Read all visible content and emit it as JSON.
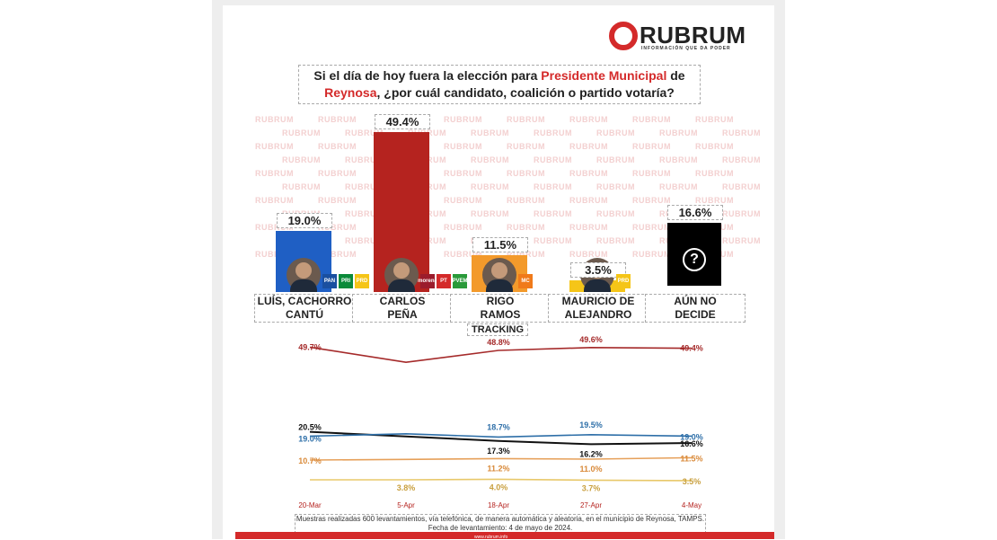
{
  "header": {
    "logo_text": "RUBRUM",
    "logo_tagline": "INFORMACIÓN QUE DA PODER"
  },
  "question": {
    "part1": "Si el día de hoy fuera la elección para ",
    "highlight1": "Presidente Municipal",
    "part2": " de",
    "highlight2": "Reynosa",
    "part3": ", ¿por cuál candidato, coalición o partido votaría?"
  },
  "watermark_text": "RUBRUM",
  "candidates": [
    {
      "name_line1": "LUÍS, CACHORRO",
      "name_line2": "CANTÚ",
      "parties": [
        "PAN",
        "PRI",
        "PRD"
      ]
    },
    {
      "name_line1": "CARLOS",
      "name_line2": "PEÑA",
      "parties": [
        "morena",
        "PT",
        "PVEM"
      ]
    },
    {
      "name_line1": "RIGO",
      "name_line2": "RAMOS",
      "parties": [
        "MC"
      ]
    },
    {
      "name_line1": "MAURICIO DE",
      "name_line2": "ALEJANDRO",
      "parties": [
        "PRD"
      ]
    },
    {
      "name_line1": "AÚN NO",
      "name_line2": "DECIDE",
      "parties": []
    }
  ],
  "colors": {
    "accent_red": "#d42a2a",
    "bar_blue": "#1f5fc4",
    "bar_red": "#b5231f",
    "bar_orange": "#f39a2b",
    "bar_yellow": "#f5c518",
    "bar_black": "#000000",
    "line_red": "#a52a2a",
    "line_blue": "#2e6fa8",
    "line_black": "#111111",
    "line_orange": "#e6a05a",
    "line_yellow": "#e8c86a"
  },
  "chart_data": [
    {
      "type": "bar",
      "categories": [
        "LUÍS, CACHORRO CANTÚ",
        "CARLOS PEÑA",
        "RIGO RAMOS",
        "MAURICIO DE ALEJANDRO",
        "AÚN NO DECIDE"
      ],
      "values": [
        19.0,
        49.4,
        11.5,
        3.5,
        16.6
      ],
      "value_labels": [
        "19.0%",
        "49.4%",
        "11.5%",
        "3.5%",
        "16.6%"
      ],
      "title": "Si el día de hoy fuera la elección para Presidente Municipal de Reynosa, ¿por cuál candidato, coalición o partido votaría?",
      "ylim": [
        0,
        50
      ]
    },
    {
      "type": "line",
      "title": "TRACKING",
      "x": [
        "20-Mar",
        "5-Apr",
        "18-Apr",
        "27-Apr",
        "4-May"
      ],
      "series": [
        {
          "color_key": "line_red",
          "values": [
            49.7,
            45.5,
            48.8,
            49.6,
            49.4
          ],
          "labels": [
            "49.7%",
            null,
            "48.8%",
            "49.6%",
            "49.4%"
          ]
        },
        {
          "color_key": "line_black",
          "values": [
            20.5,
            18.9,
            17.3,
            16.2,
            16.6
          ],
          "labels": [
            "20.5%",
            null,
            "17.3%",
            "16.2%",
            "16.6%"
          ]
        },
        {
          "color_key": "line_blue",
          "values": [
            19.0,
            19.8,
            18.7,
            19.5,
            19.0
          ],
          "labels": [
            "19.0%",
            null,
            "18.7%",
            "19.5%",
            "19.0%"
          ]
        },
        {
          "color_key": "line_orange",
          "values": [
            10.7,
            10.9,
            11.2,
            11.0,
            11.5
          ],
          "labels": [
            "10.7%",
            null,
            "11.2%",
            "11.0%",
            "11.5%"
          ]
        },
        {
          "color_key": "line_yellow",
          "values": [
            3.8,
            3.8,
            4.0,
            3.7,
            3.5
          ],
          "labels": [
            null,
            "3.8%",
            "4.0%",
            "3.7%",
            "3.5%"
          ]
        }
      ]
    }
  ],
  "footnote": {
    "line1": "Muestras realizadas 600 levantamientos, vía telefónica, de manera automática y aleatoria, en el municipio de Reynosa, TAMPS.",
    "line2": "Fecha de levantamiento: 4 de mayo de 2024."
  },
  "site_text": "www.rubrum.info"
}
